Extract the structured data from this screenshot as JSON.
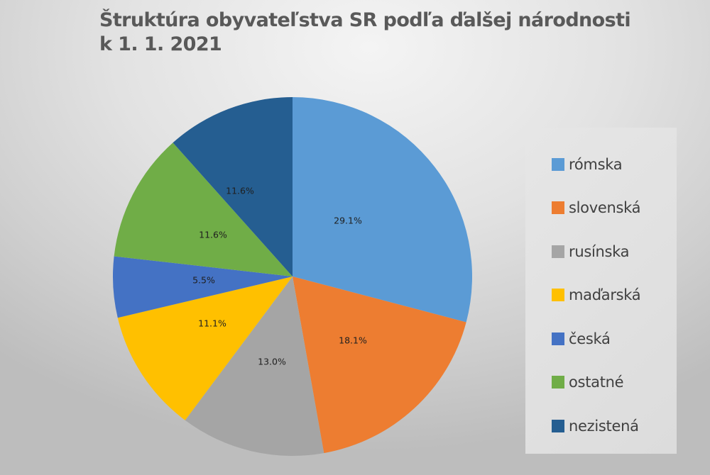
{
  "title": {
    "line1": "Štruktúra obyvateľstva SR podľa ďalšej národnosti",
    "line2": "k 1. 1. 2021"
  },
  "legend": {
    "items": [
      {
        "label": "rómska",
        "color": "#5b9bd5"
      },
      {
        "label": "slovenská",
        "color": "#ed7d31"
      },
      {
        "label": "rusínska",
        "color": "#a5a5a5"
      },
      {
        "label": "maďarská",
        "color": "#ffc000"
      },
      {
        "label": "česká",
        "color": "#4472c4"
      },
      {
        "label": "ostatné",
        "color": "#70ad47"
      },
      {
        "label": "nezistená",
        "color": "#255e91"
      }
    ]
  },
  "slice_labels": [
    "29.1%",
    "18.1%",
    "13.0%",
    "11.1%",
    "5.5%",
    "11.6%",
    "11.6%"
  ],
  "chart_data": {
    "type": "pie",
    "title": "Štruktúra obyvateľstva SR podľa ďalšej národnosti k 1. 1. 2021",
    "categories": [
      "rómska",
      "slovenská",
      "rusínska",
      "maďarská",
      "česká",
      "ostatné",
      "nezistená"
    ],
    "values": [
      29.1,
      18.1,
      13.0,
      11.1,
      5.5,
      11.6,
      11.6
    ],
    "unit": "%",
    "colors": [
      "#5b9bd5",
      "#ed7d31",
      "#a5a5a5",
      "#ffc000",
      "#4472c4",
      "#70ad47",
      "#255e91"
    ],
    "start_angle": "12 o'clock",
    "direction": "clockwise",
    "data_labels": true,
    "legend_position": "right"
  }
}
